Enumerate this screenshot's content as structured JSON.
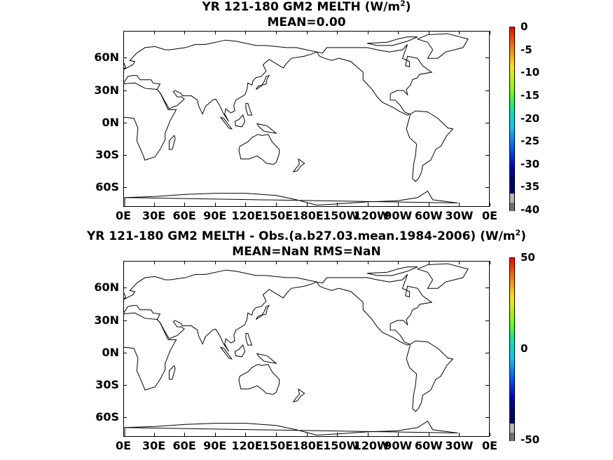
{
  "panels": [
    {
      "title_line1_pre": "YR 121-180 GM2  MELTH (W/m",
      "title_sup": "2",
      "title_line1_post": ")",
      "title_line2": "MEAN=0.00",
      "colorbar_labels": [
        "0",
        "-5",
        "-10",
        "-15",
        "-20",
        "-25",
        "-30",
        "-35",
        "-40"
      ]
    },
    {
      "title_line1_pre": "YR 121-180 GM2 MELTH - Obs.(a.b27.03.mean.1984-2006) (W/m",
      "title_sup": "2",
      "title_line1_post": ")",
      "title_line2": "MEAN=NaN RMS=NaN",
      "colorbar_labels": [
        "50",
        "0",
        "-50"
      ]
    }
  ],
  "lat_labels": [
    "60N",
    "30N",
    "0N",
    "30S",
    "60S"
  ],
  "lon_labels": [
    "0E",
    "30E",
    "60E",
    "90E",
    "120E",
    "150E",
    "180E",
    "150W",
    "120W",
    "90W",
    "60W",
    "30W",
    "0E"
  ],
  "colors": {
    "coast": "#000000",
    "undefined_gray": "#707070",
    "light_gray": "#b4b4b4"
  }
}
